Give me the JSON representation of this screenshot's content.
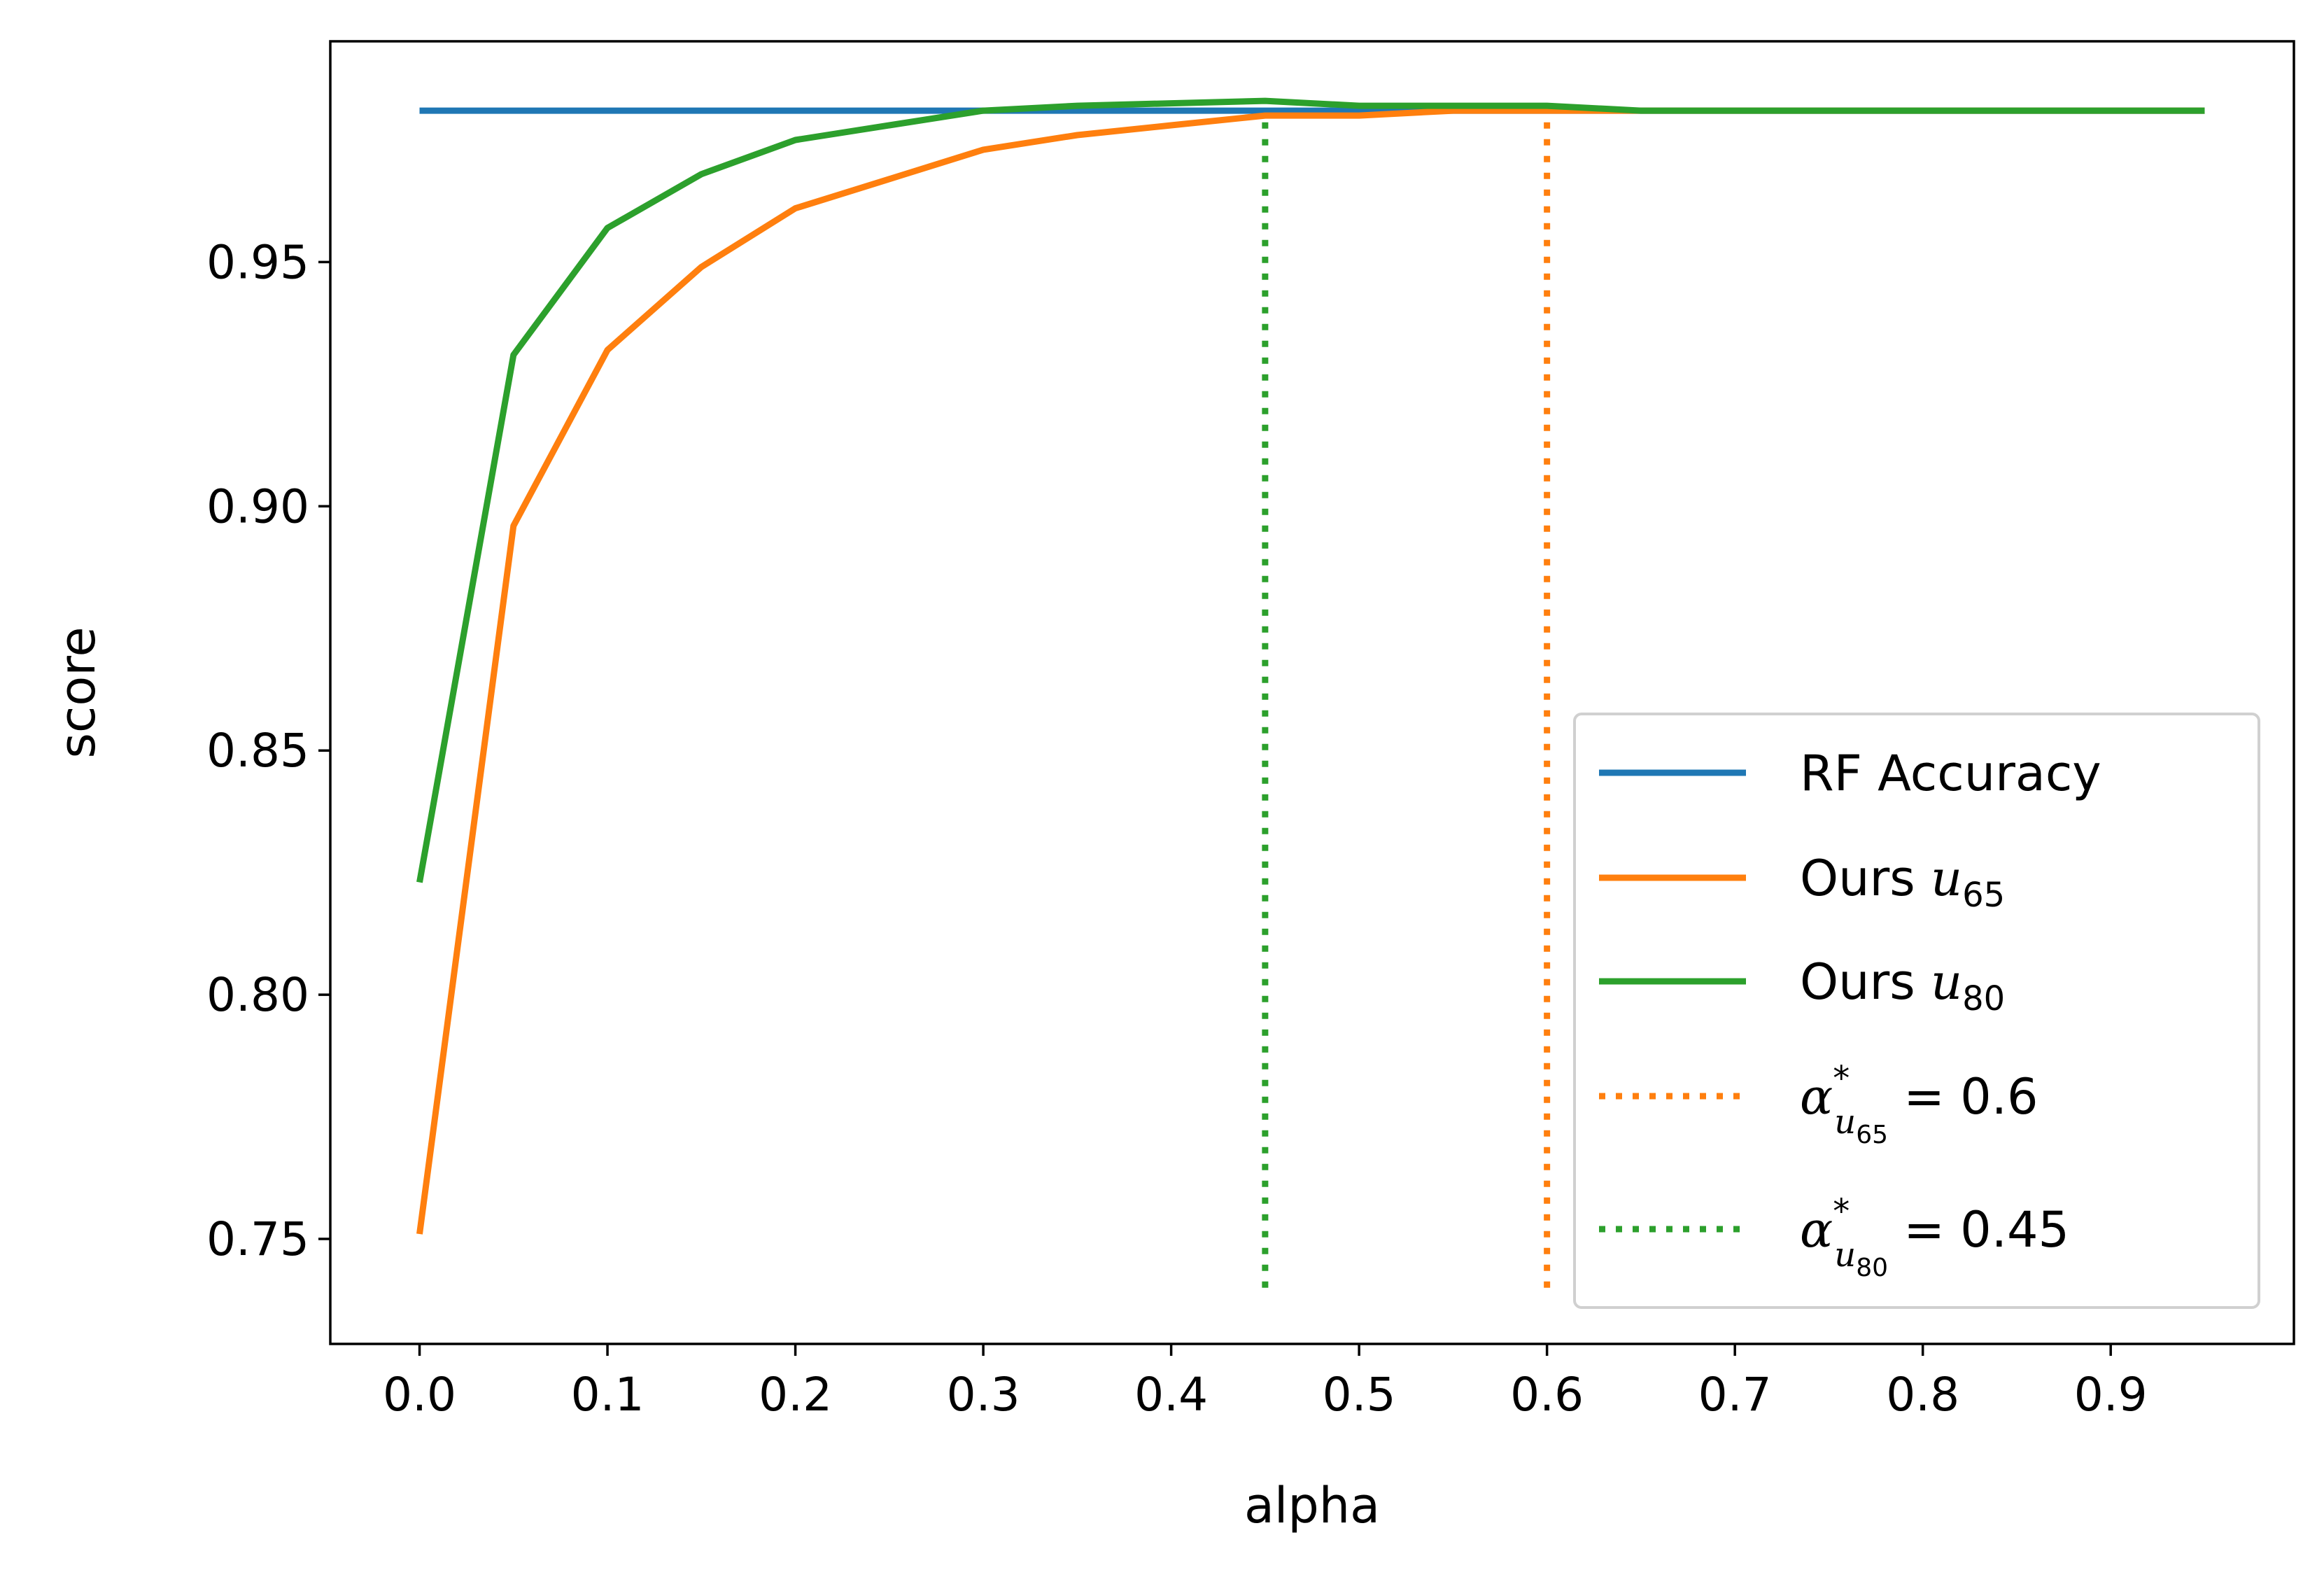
{
  "chart_data": {
    "type": "line",
    "xlabel": "alpha",
    "ylabel": "score",
    "xlim": [
      -0.0475,
      0.9975
    ],
    "ylim": [
      0.7285,
      0.9952
    ],
    "x_ticks": [
      0.0,
      0.1,
      0.2,
      0.3,
      0.4,
      0.5,
      0.6,
      0.7,
      0.8,
      0.9
    ],
    "x_tick_labels": [
      "0.0",
      "0.1",
      "0.2",
      "0.3",
      "0.4",
      "0.5",
      "0.6",
      "0.7",
      "0.8",
      "0.9"
    ],
    "y_ticks": [
      0.75,
      0.8,
      0.85,
      0.9,
      0.95
    ],
    "y_tick_labels": [
      "0.75",
      "0.80",
      "0.85",
      "0.90",
      "0.95"
    ],
    "grid": false,
    "legend_position": "lower-right",
    "x": [
      0.0,
      0.05,
      0.1,
      0.15,
      0.2,
      0.25,
      0.3,
      0.35,
      0.4,
      0.45,
      0.5,
      0.55,
      0.6,
      0.65,
      0.7,
      0.75,
      0.8,
      0.85,
      0.9,
      0.95
    ],
    "series": [
      {
        "name": "RF Accuracy",
        "color": "#1f77b4",
        "style": "solid",
        "values": [
          0.981,
          0.981,
          0.981,
          0.981,
          0.981,
          0.981,
          0.981,
          0.981,
          0.981,
          0.981,
          0.981,
          0.981,
          0.981,
          0.981,
          0.981,
          0.981,
          0.981,
          0.981,
          0.981,
          0.981
        ]
      },
      {
        "name": "Ours u65",
        "name_main": "Ours ",
        "name_var": "u",
        "name_sub": "65",
        "color": "#ff7f0e",
        "style": "solid",
        "values": [
          0.751,
          0.896,
          0.932,
          0.949,
          0.961,
          0.967,
          0.973,
          0.976,
          0.978,
          0.98,
          0.98,
          0.981,
          0.981,
          0.981,
          0.981,
          0.981,
          0.981,
          0.981,
          0.981,
          0.981
        ]
      },
      {
        "name": "Ours u80",
        "name_main": "Ours ",
        "name_var": "u",
        "name_sub": "80",
        "color": "#2ca02c",
        "style": "solid",
        "values": [
          0.823,
          0.931,
          0.957,
          0.968,
          0.975,
          0.978,
          0.981,
          0.982,
          0.9825,
          0.983,
          0.982,
          0.982,
          0.982,
          0.981,
          0.981,
          0.981,
          0.981,
          0.981,
          0.981,
          0.981
        ]
      }
    ],
    "vlines": [
      {
        "name": "α*u65 = 0.6",
        "name_var": "α",
        "name_star": "*",
        "name_sub_var": "u",
        "name_sub_sub": "65",
        "name_eq": " = 0.6",
        "x": 0.6,
        "y_from": 0.74,
        "y_to": 0.981,
        "color": "#ff7f0e",
        "style": "dotted"
      },
      {
        "name": "α*u80 = 0.45",
        "name_var": "α",
        "name_star": "*",
        "name_sub_var": "u",
        "name_sub_sub": "80",
        "name_eq": " = 0.45",
        "x": 0.45,
        "y_from": 0.74,
        "y_to": 0.981,
        "color": "#2ca02c",
        "style": "dotted"
      }
    ]
  }
}
